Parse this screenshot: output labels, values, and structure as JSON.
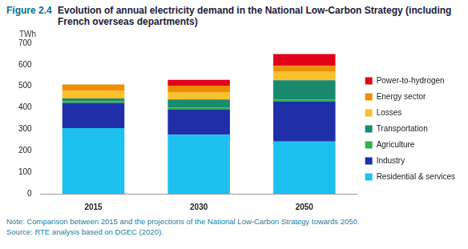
{
  "chart_data": {
    "type": "bar",
    "title": "Evolution of annual electricity demand in the National Low-Carbon Strategy (including French overseas departments)",
    "annotations": [
      "Figure 2.4",
      "Note: Comparison between 2015 and the projections of the National Low-Carbon Strategy towards 2050.",
      "Source: RTE analysis based on DGEC (2020)."
    ],
    "y_label": "TWh",
    "categories": [
      "2015",
      "2030",
      "2050"
    ],
    "series": [
      {
        "name": "Residential & services",
        "color": "#1ec0f0",
        "values": [
          305,
          275,
          243
        ]
      },
      {
        "name": "Industry",
        "color": "#1f2fa8",
        "values": [
          118,
          118,
          187
        ]
      },
      {
        "name": "Agriculture",
        "color": "#2cb34a",
        "values": [
          8,
          8,
          8
        ]
      },
      {
        "name": "Transportation",
        "color": "#1a8a6e",
        "values": [
          12,
          37,
          90
        ]
      },
      {
        "name": "Losses",
        "color": "#fbc02d",
        "values": [
          35,
          35,
          40
        ]
      },
      {
        "name": "Energy sector",
        "color": "#f18e00",
        "values": [
          30,
          30,
          27
        ]
      },
      {
        "name": "Power-to-hydrogen",
        "color": "#e2001a",
        "values": [
          0,
          27,
          55
        ]
      }
    ],
    "ylim": [
      0,
      700
    ],
    "yticks": [
      0,
      100,
      200,
      300,
      400,
      500,
      600,
      700
    ],
    "stacked": true,
    "grid": false,
    "legend": "right",
    "data_labels": false
  }
}
